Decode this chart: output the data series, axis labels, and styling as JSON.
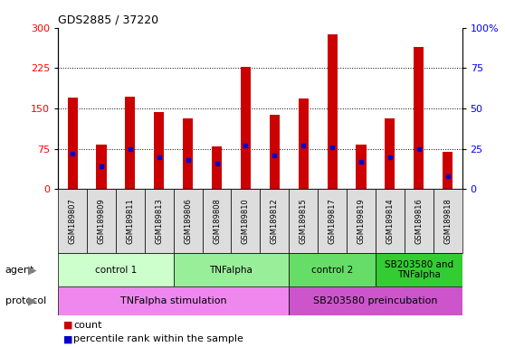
{
  "title": "GDS2885 / 37220",
  "samples": [
    "GSM189807",
    "GSM189809",
    "GSM189811",
    "GSM189813",
    "GSM189806",
    "GSM189808",
    "GSM189810",
    "GSM189812",
    "GSM189815",
    "GSM189817",
    "GSM189819",
    "GSM189814",
    "GSM189816",
    "GSM189818"
  ],
  "count_values": [
    170,
    82,
    172,
    143,
    132,
    80,
    228,
    138,
    168,
    287,
    82,
    132,
    265,
    70
  ],
  "percentile_values": [
    22,
    14,
    25,
    20,
    18,
    16,
    27,
    21,
    27,
    26,
    17,
    20,
    25,
    8
  ],
  "ylim_left": [
    0,
    300
  ],
  "ylim_right": [
    0,
    100
  ],
  "yticks_left": [
    0,
    75,
    150,
    225,
    300
  ],
  "yticks_right": [
    0,
    25,
    50,
    75,
    100
  ],
  "bar_color": "#cc0000",
  "dot_color": "#0000cc",
  "bar_width": 0.35,
  "agent_groups": [
    {
      "label": "control 1",
      "start": 0,
      "end": 4,
      "color": "#ccffcc"
    },
    {
      "label": "TNFalpha",
      "start": 4,
      "end": 8,
      "color": "#99ee99"
    },
    {
      "label": "control 2",
      "start": 8,
      "end": 11,
      "color": "#66dd66"
    },
    {
      "label": "SB203580 and\nTNFalpha",
      "start": 11,
      "end": 14,
      "color": "#33cc33"
    }
  ],
  "protocol_groups": [
    {
      "label": "TNFalpha stimulation",
      "start": 0,
      "end": 8,
      "color": "#ee88ee"
    },
    {
      "label": "SB203580 preincubation",
      "start": 8,
      "end": 14,
      "color": "#cc55cc"
    }
  ],
  "agent_label": "agent",
  "protocol_label": "protocol",
  "legend_count_label": "count",
  "legend_percentile_label": "percentile rank within the sample",
  "background_color": "#ffffff",
  "label_area_color": "#dddddd",
  "tick_bg_color": "#c8c8c8"
}
